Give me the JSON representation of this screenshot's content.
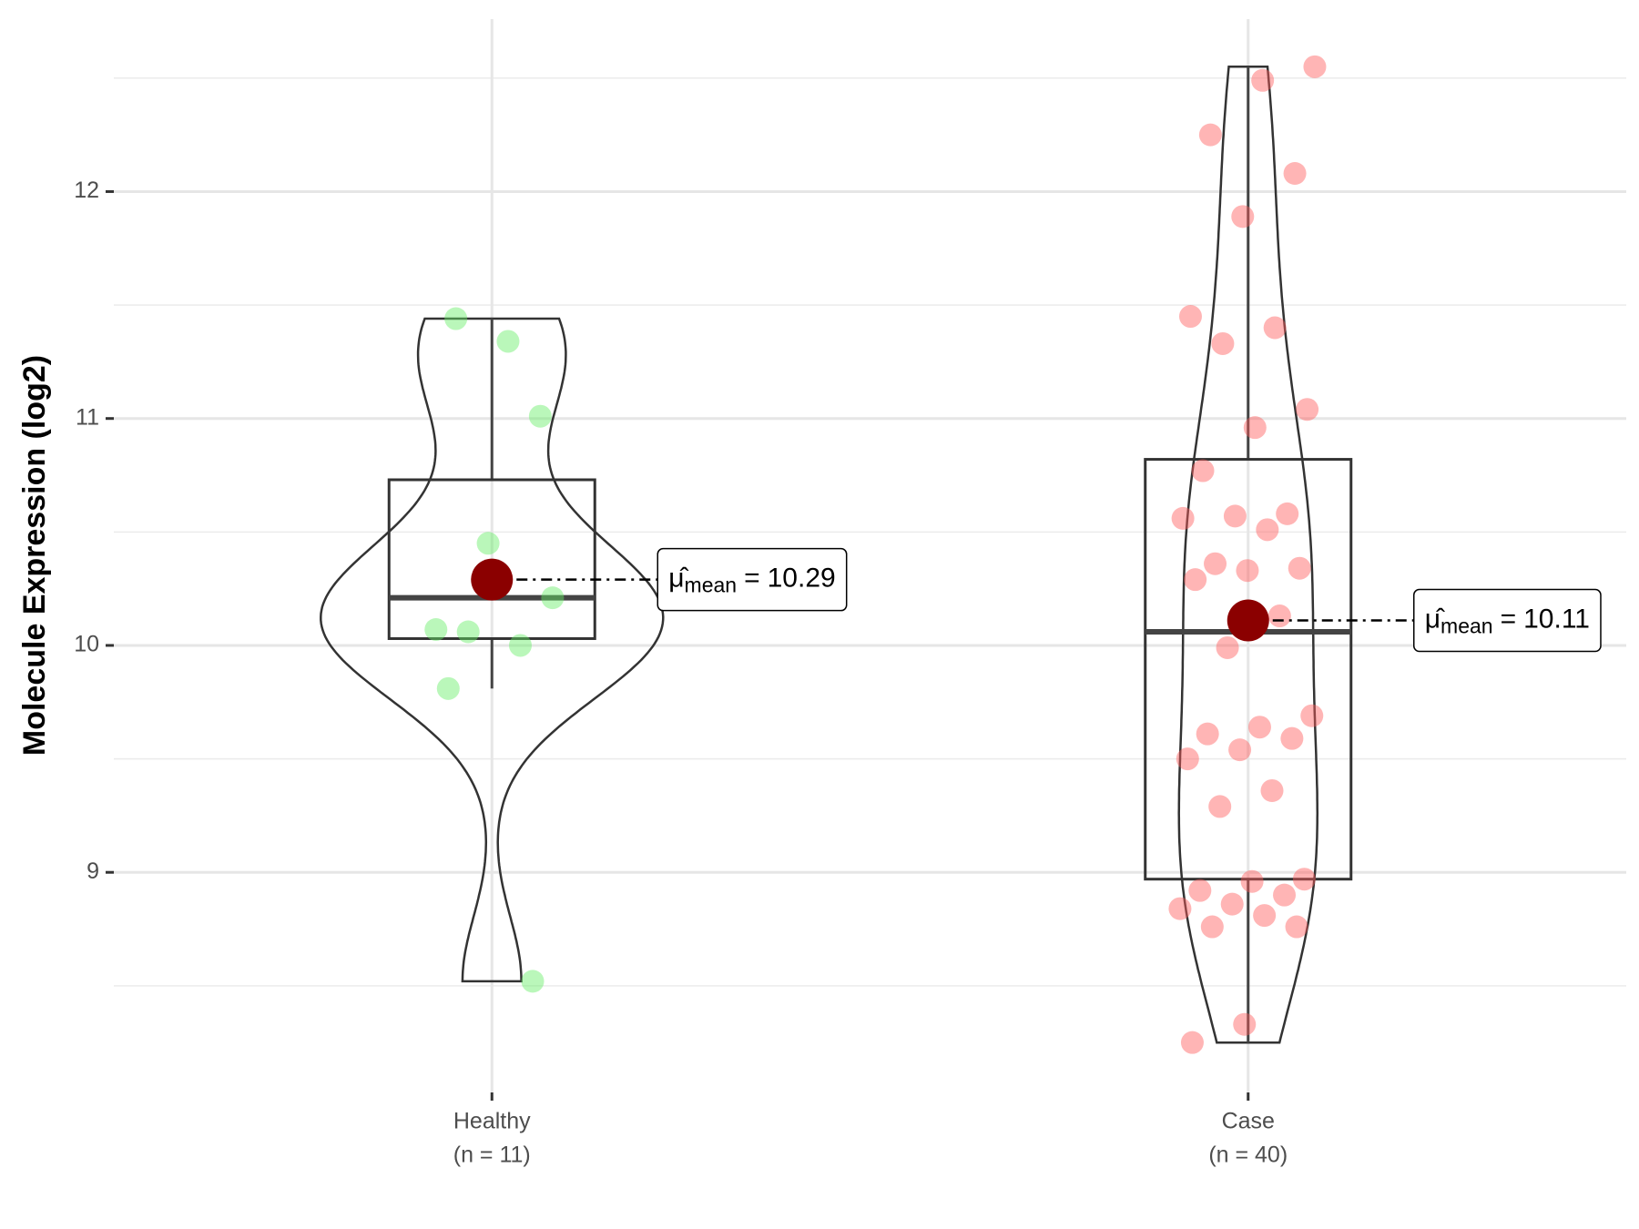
{
  "chart_data": {
    "type": "violin",
    "y_label": "Molecule Expression (log2)",
    "ylim": [
      8.03,
      12.76
    ],
    "yticks": [
      9,
      10,
      11,
      12
    ],
    "y_minor_ticks": [
      8.5,
      9.5,
      10.5,
      11.5,
      12.5
    ],
    "grid": true,
    "mean_annotation": {
      "symbol": "μ̂",
      "subscript": "mean",
      "relation": "="
    },
    "groups": [
      {
        "category": "Healthy",
        "sublabel": "(n = 11)",
        "color": "#66ee66",
        "values": [
          11.34,
          11.44,
          11.01,
          10.45,
          10.07,
          10.0,
          10.06,
          10.21,
          10.27,
          9.81,
          8.52
        ],
        "box": {
          "lower_whisker": 9.81,
          "q1": 10.03,
          "median": 10.21,
          "q3": 10.73,
          "upper_whisker": 11.44
        },
        "mean": 10.29
      },
      {
        "category": "Case",
        "sublabel": "(n = 40)",
        "color": "#ff5a5a",
        "values": [
          12.55,
          12.49,
          12.25,
          12.08,
          11.89,
          11.45,
          11.4,
          11.33,
          11.04,
          10.96,
          10.77,
          10.58,
          10.57,
          10.56,
          10.51,
          10.36,
          10.34,
          10.33,
          10.29,
          10.13,
          9.99,
          9.69,
          9.64,
          9.61,
          9.59,
          9.54,
          9.5,
          9.36,
          9.29,
          8.97,
          8.96,
          8.92,
          8.9,
          8.86,
          8.84,
          8.81,
          8.76,
          8.76,
          8.33,
          8.25
        ],
        "box": {
          "lower_whisker": 8.25,
          "q1": 8.97,
          "median": 10.06,
          "q3": 10.82,
          "upper_whisker": 12.55
        },
        "mean": 10.11
      }
    ]
  }
}
